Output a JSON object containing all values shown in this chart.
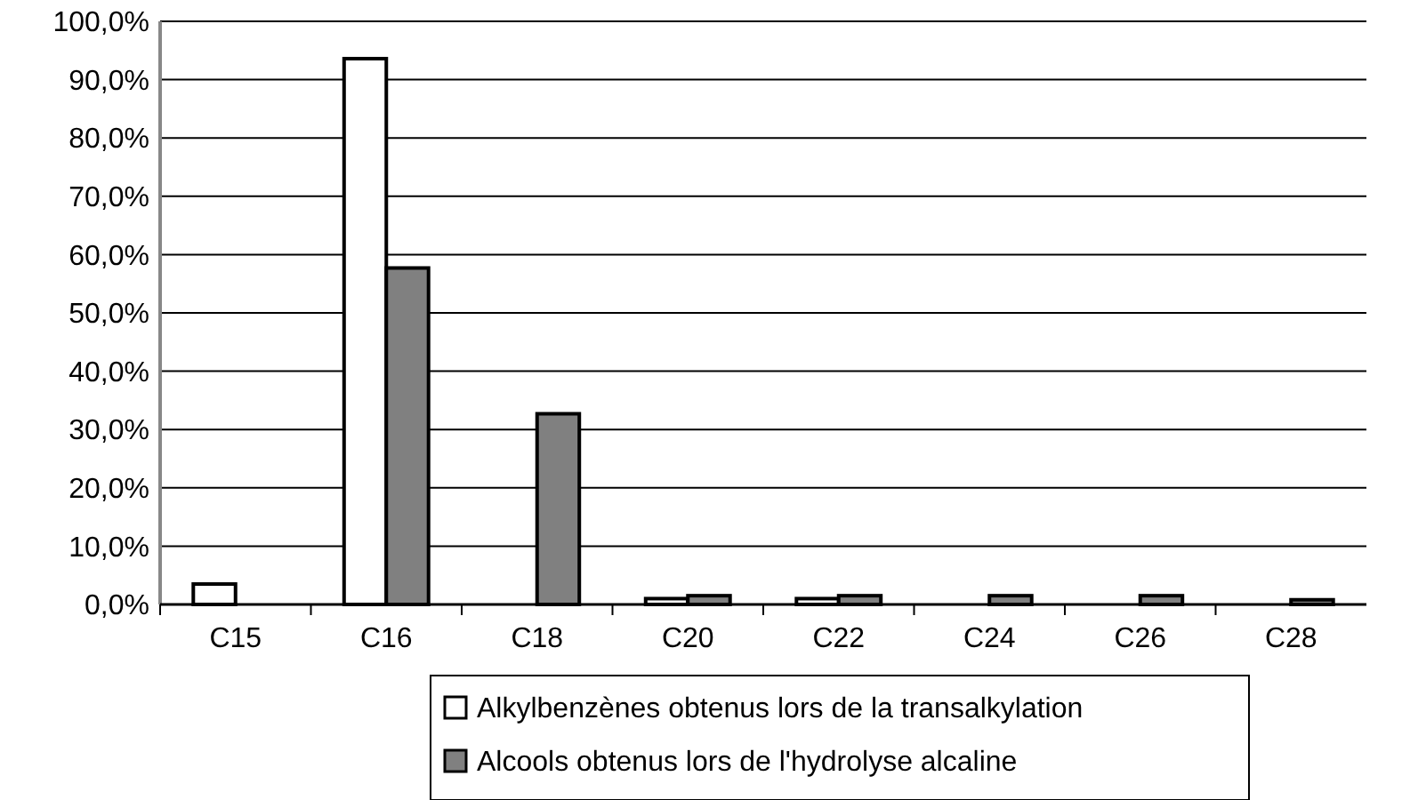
{
  "chart_data": {
    "type": "bar",
    "categories": [
      "C15",
      "C16",
      "C18",
      "C20",
      "C22",
      "C24",
      "C26",
      "C28"
    ],
    "series": [
      {
        "name": "Alkylbenzènes obtenus lors de la transalkylation",
        "color": "#ffffff",
        "values": [
          3.5,
          93.6,
          null,
          1,
          1,
          null,
          null,
          null
        ]
      },
      {
        "name": "Alcools obtenus lors de l'hydrolyse alcaline",
        "color": "#808080",
        "values": [
          null,
          57.7,
          32.7,
          1.5,
          1.5,
          1.5,
          1.5,
          0.8
        ]
      }
    ],
    "ylim": [
      0,
      100
    ],
    "yticks": [
      {
        "value": 0,
        "label": "0,0%"
      },
      {
        "value": 10,
        "label": "10,0%"
      },
      {
        "value": 20,
        "label": "20,0%"
      },
      {
        "value": 30,
        "label": "30,0%"
      },
      {
        "value": 40,
        "label": "40,0%"
      },
      {
        "value": 50,
        "label": "50,0%"
      },
      {
        "value": 60,
        "label": "60,0%"
      },
      {
        "value": 70,
        "label": "70,0%"
      },
      {
        "value": 80,
        "label": "80,0%"
      },
      {
        "value": 90,
        "label": "90,0%"
      },
      {
        "value": 100,
        "label": "100,0%"
      }
    ],
    "grid": "y",
    "legend": "bottom"
  }
}
